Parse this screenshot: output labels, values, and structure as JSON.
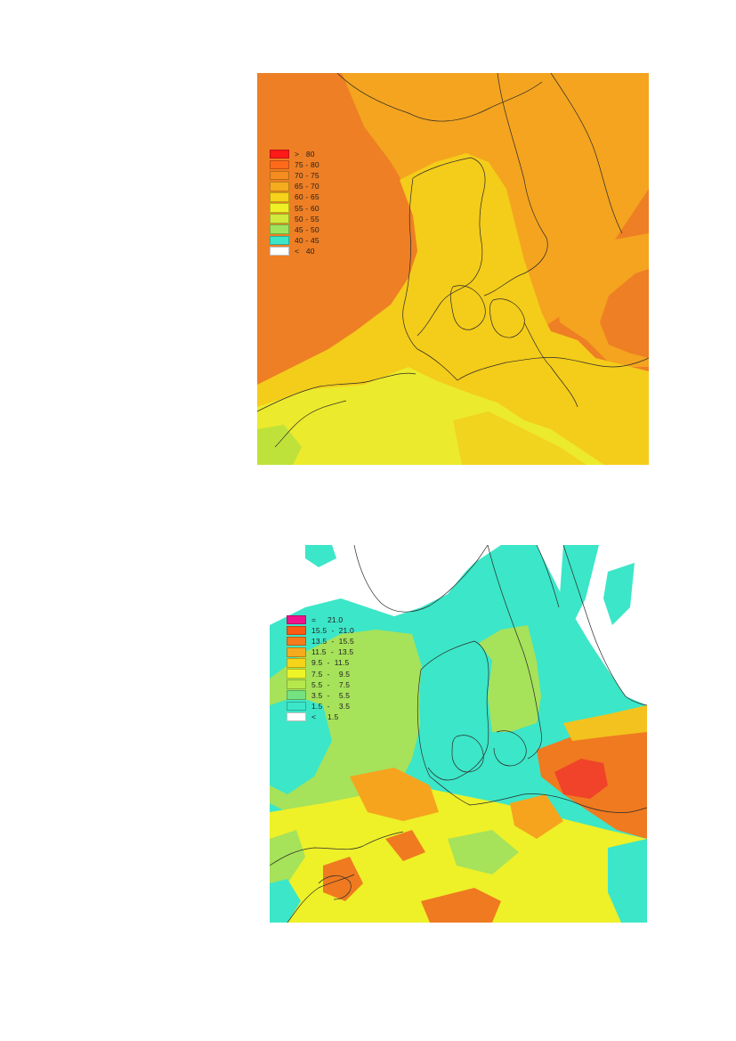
{
  "maps": [
    {
      "colors": {
        "sea": "#ee7f24",
        "land": "#f4cc1a",
        "south": "#ecea2c"
      },
      "legend": [
        {
          "label": ">   80",
          "color": "#ff1a1a"
        },
        {
          "label": "75 - 80",
          "color": "#ff6a1a"
        },
        {
          "label": "70 - 75",
          "color": "#f58c1f"
        },
        {
          "label": "65 - 70",
          "color": "#f6ac1f"
        },
        {
          "label": "60 - 65",
          "color": "#f6d21a"
        },
        {
          "label": "55 - 60",
          "color": "#f0f026"
        },
        {
          "label": "50 - 55",
          "color": "#d2ea3c"
        },
        {
          "label": "45 - 50",
          "color": "#9ee45e"
        },
        {
          "label": "40 - 45",
          "color": "#3ce6c8"
        },
        {
          "label": "<   40",
          "color": "#ffffff"
        }
      ]
    },
    {
      "colors": {
        "sea": "#3ce6c8",
        "mid": "#a6e25a",
        "hot": "#ef7a20"
      },
      "legend": [
        {
          "label": "=     21.0",
          "color": "#f0148c"
        },
        {
          "label": "15.5  -  21.0",
          "color": "#ff5a14"
        },
        {
          "label": "13.5  -  15.5",
          "color": "#f77a1c"
        },
        {
          "label": "11.5  -  13.5",
          "color": "#f6aa1e"
        },
        {
          "label": "9.5  -  11.5",
          "color": "#f6d41a"
        },
        {
          "label": "7.5  -    9.5",
          "color": "#eef428"
        },
        {
          "label": "5.5  -    7.5",
          "color": "#b6e84c"
        },
        {
          "label": "3.5  -    5.5",
          "color": "#74e280"
        },
        {
          "label": "1.5  -    3.5",
          "color": "#3ce6c8"
        },
        {
          "label": "<     1.5",
          "color": "#ffffff"
        }
      ]
    }
  ]
}
